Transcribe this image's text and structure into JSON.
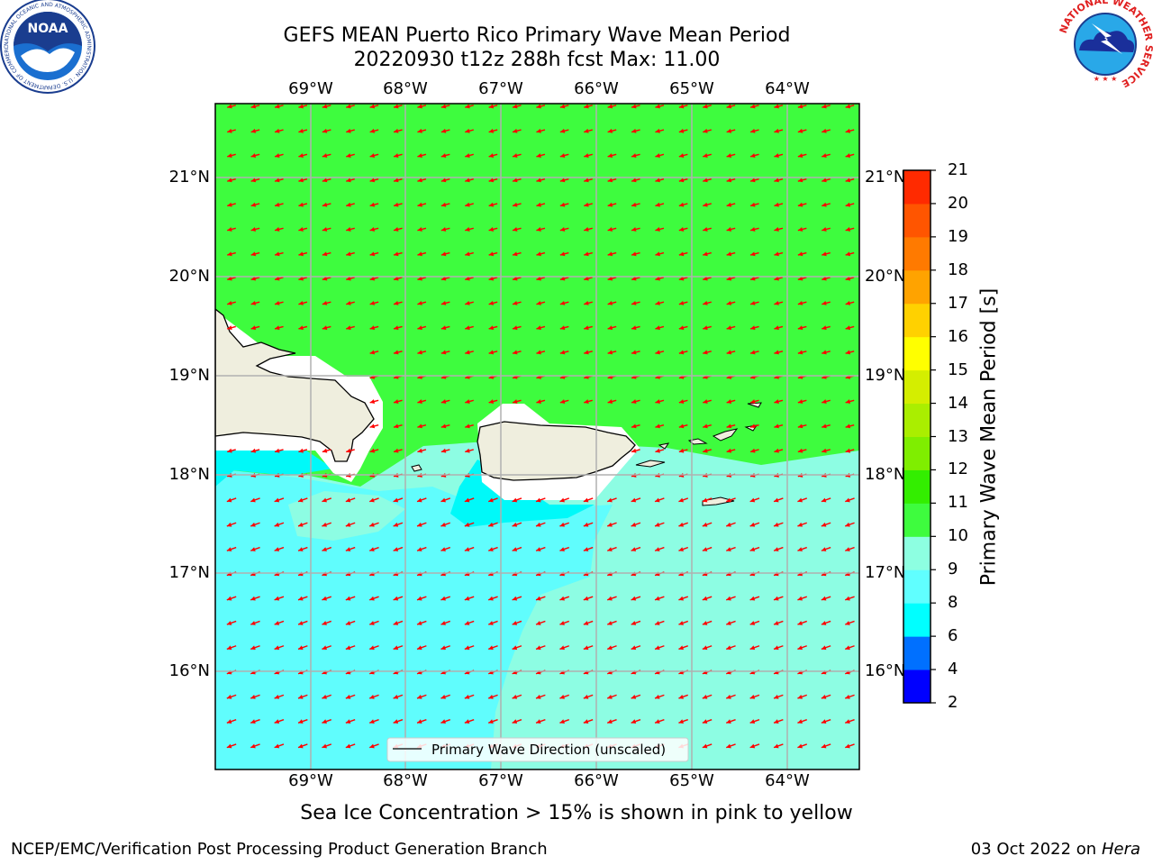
{
  "header": {
    "title_line1": "GEFS MEAN Puerto Rico Primary Wave Mean Period",
    "title_line2": "20220930 t12z 288h fcst   Max: 11.00"
  },
  "logos": {
    "noaa_text": "NOAA",
    "noaa_ring_text": "NATIONAL OCEANIC AND ATMOSPHERIC ADMINISTRATION · U.S. DEPARTMENT OF COMMERCE",
    "nws_ring_text": "NATIONAL WEATHER SERVICE"
  },
  "map": {
    "lon_labels": [
      "69°W",
      "68°W",
      "67°W",
      "66°W",
      "65°W",
      "64°W"
    ],
    "lat_labels": [
      "21°N",
      "20°N",
      "19°N",
      "18°N",
      "17°N",
      "16°N"
    ],
    "legend_label": "Primary Wave Direction (unscaled)",
    "colors": {
      "land": "#efeede",
      "period_10_11": "#3efc3e",
      "period_9_10": "#8dfde3",
      "period_8_9": "#60fdfd",
      "period_6_8": "#00f9f9",
      "arrow": "#ff0000",
      "grid": "#b0b0b0"
    }
  },
  "colorbar": {
    "title": "Primary Wave Mean Period [s]",
    "ticks": [
      "2",
      "4",
      "6",
      "8",
      "9",
      "10",
      "11",
      "12",
      "13",
      "14",
      "15",
      "16",
      "17",
      "18",
      "19",
      "20",
      "21"
    ],
    "colors": [
      "#0000ff",
      "#0070ff",
      "#00ffff",
      "#60ffff",
      "#8dffe1",
      "#3efc3e",
      "#33ee00",
      "#7fee00",
      "#aaee00",
      "#d4ee00",
      "#ffff00",
      "#ffd100",
      "#ffa300",
      "#ff7a00",
      "#ff5500",
      "#ff2a00",
      "#ff0000"
    ]
  },
  "footer": {
    "subtitle": "Sea Ice Concentration > 15% is shown in pink to yellow",
    "credit": "NCEP/EMC/Verification Post Processing Product Generation Branch",
    "date": "03 Oct 2022 on",
    "machine": "Hera"
  }
}
